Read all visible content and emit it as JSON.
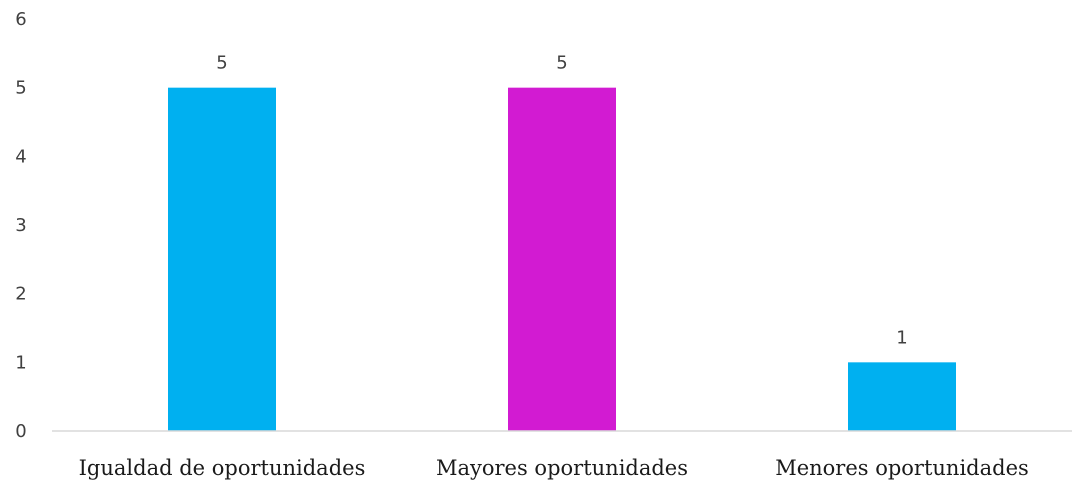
{
  "chart_data": {
    "type": "bar",
    "categories": [
      "Igualdad de oportunidades",
      "Mayores oportunidades",
      "Menores oportunidades"
    ],
    "values": [
      5,
      5,
      1
    ],
    "data_labels": [
      "5",
      "5",
      "1"
    ],
    "bar_colors": [
      "#00b0f0",
      "#d21bd2",
      "#00b0f0"
    ],
    "ylim": [
      0,
      6
    ],
    "yticks": [
      "0",
      "1",
      "2",
      "3",
      "4",
      "5",
      "6"
    ],
    "grid": false,
    "legend": "none"
  }
}
